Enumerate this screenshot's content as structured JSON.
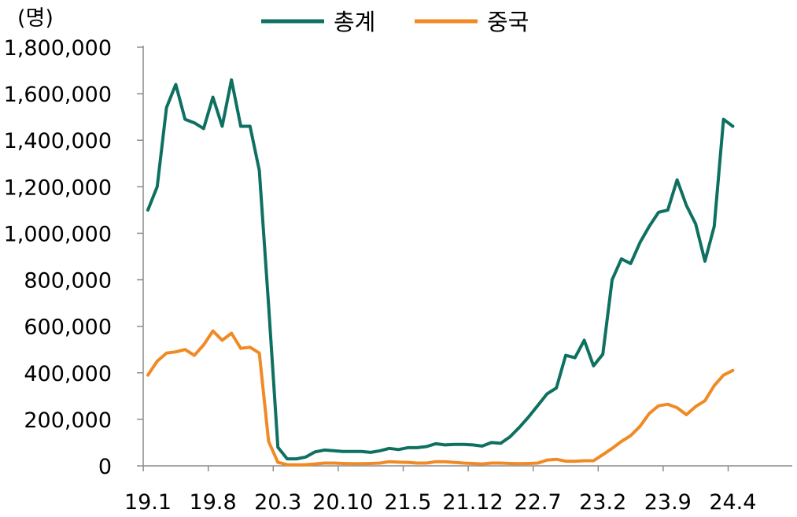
{
  "chart_data": {
    "type": "line",
    "unit_label": "(명)",
    "ylim": [
      0,
      1800000
    ],
    "y_ticks": [
      "0",
      "200,000",
      "400,000",
      "600,000",
      "800,000",
      "1,000,000",
      "1,200,000",
      "1,400,000",
      "1,600,000",
      "1,800,000"
    ],
    "y_tick_values": [
      0,
      200000,
      400000,
      600000,
      800000,
      1000000,
      1200000,
      1400000,
      1600000,
      1800000
    ],
    "x_tick_labels": [
      "19.1",
      "19.8",
      "20.3",
      "20.10",
      "21.5",
      "21.12",
      "22.7",
      "23.2",
      "23.9",
      "24.4"
    ],
    "x_tick_indices": [
      0,
      7,
      14,
      21,
      28,
      35,
      42,
      49,
      56,
      63
    ],
    "x_count": 64,
    "grid": false,
    "legend_position": "top-center",
    "series": [
      {
        "name": "총계",
        "color": "#0e7061",
        "values": [
          1100000,
          1200000,
          1540000,
          1640000,
          1490000,
          1475000,
          1450000,
          1585000,
          1460000,
          1660000,
          1460000,
          1460000,
          1270000,
          690000,
          80000,
          30000,
          30000,
          38000,
          60000,
          68000,
          65000,
          62000,
          62000,
          62000,
          58000,
          65000,
          75000,
          70000,
          78000,
          78000,
          83000,
          95000,
          90000,
          92000,
          92000,
          90000,
          85000,
          100000,
          97000,
          125000,
          165000,
          210000,
          260000,
          310000,
          335000,
          475000,
          465000,
          540000,
          430000,
          480000,
          800000,
          890000,
          870000,
          960000,
          1030000,
          1090000,
          1100000,
          1230000,
          1120000,
          1040000,
          880000,
          1030000,
          1490000,
          1460000
        ]
      },
      {
        "name": "중국",
        "color": "#f08a24",
        "values": [
          390000,
          450000,
          485000,
          490000,
          500000,
          475000,
          520000,
          580000,
          540000,
          570000,
          505000,
          510000,
          485000,
          105000,
          15000,
          5000,
          4000,
          5000,
          8000,
          12000,
          12000,
          10000,
          9000,
          9000,
          10000,
          12000,
          18000,
          16000,
          15000,
          12000,
          12000,
          18000,
          18000,
          15000,
          12000,
          10000,
          8000,
          12000,
          12000,
          10000,
          9000,
          10000,
          12000,
          25000,
          28000,
          20000,
          20000,
          22000,
          22000,
          48000,
          75000,
          105000,
          130000,
          170000,
          225000,
          258000,
          265000,
          250000,
          220000,
          255000,
          280000,
          345000,
          390000,
          410000
        ]
      }
    ]
  }
}
